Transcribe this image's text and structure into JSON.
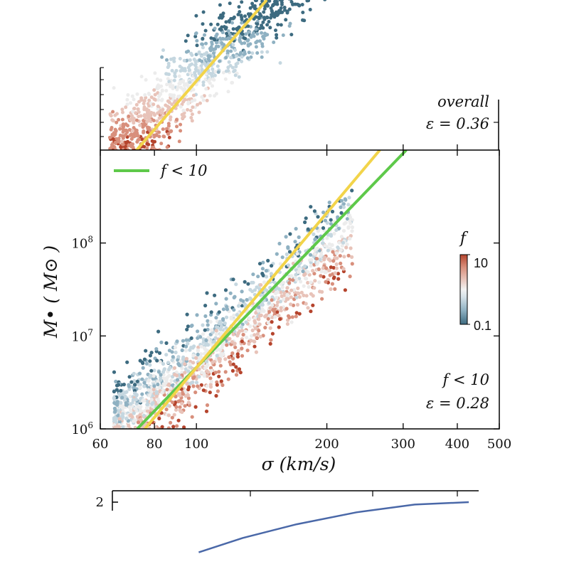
{
  "chart_data": [
    {
      "panel": "top",
      "type": "scatter",
      "annotation": [
        "overall",
        "ε = 0.36"
      ],
      "fit_line_color": "#f2d44a",
      "colormap": [
        "#3d6b80",
        "#8fb1c2",
        "#c5d7e0",
        "#ececec",
        "#e8c3b9",
        "#d88f7c",
        "#b5442d"
      ]
    },
    {
      "panel": "main",
      "type": "scatter",
      "title": "",
      "xlabel": "σ (km/s)",
      "ylabel": "M• ( M⊙ )",
      "xscale": "log",
      "yscale": "log",
      "xlim": [
        60,
        500
      ],
      "ylim": [
        1000000,
        1000000000
      ],
      "x_ticks": [
        {
          "value": 60,
          "label": "60"
        },
        {
          "value": 80,
          "label": "80"
        },
        {
          "value": 100,
          "label": "100"
        },
        {
          "value": 200,
          "label": "200"
        },
        {
          "value": 300,
          "label": "300"
        },
        {
          "value": 400,
          "label": "400"
        },
        {
          "value": 500,
          "label": "500"
        }
      ],
      "y_ticks": [
        {
          "value": 1000000,
          "label": "10",
          "exp": "6"
        },
        {
          "value": 10000000,
          "label": "10",
          "exp": "7"
        },
        {
          "value": 100000000,
          "label": "10",
          "exp": "8"
        }
      ],
      "legend": {
        "position": "top-left",
        "entries": [
          {
            "label": "f < 10",
            "color": "#5ec94a"
          }
        ]
      },
      "colorbar": {
        "label": "f",
        "max_label": "10",
        "min_label": "0.1",
        "scale": "log",
        "range": [
          0.1,
          10
        ]
      },
      "annotation": [
        "f < 10",
        "ε = 0.28"
      ],
      "series": [
        {
          "name": "f < 10",
          "kind": "line",
          "color": "#5ec94a",
          "x": [
            73,
            305
          ],
          "y": [
            1000000,
            1000000000
          ]
        },
        {
          "kind": "line",
          "color": "#f2d44a",
          "x": [
            76,
            265
          ],
          "y": [
            1000000,
            1000000000
          ]
        }
      ],
      "grid": false
    },
    {
      "panel": "bottom",
      "type": "line",
      "y_tick_label": "2",
      "series": [
        {
          "kind": "line",
          "color": "#4a68a8",
          "x": [
            95,
            120,
            160,
            220,
            300,
            400
          ],
          "y": [
            0.16,
            0.4,
            0.63,
            0.83,
            0.96,
            1.0
          ]
        }
      ]
    }
  ]
}
